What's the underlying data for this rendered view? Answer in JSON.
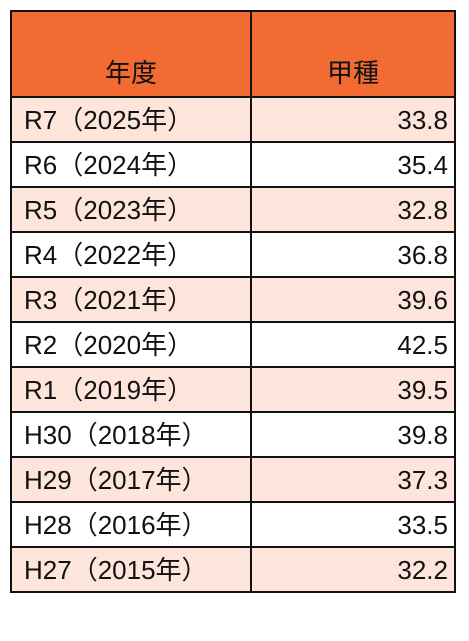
{
  "table": {
    "headers": [
      "年度",
      "甲種"
    ],
    "header_bg": "#f26b33",
    "stripe_bg": "#fde5dc",
    "rows": [
      {
        "year": "R7（2025年）",
        "value": "33.8"
      },
      {
        "year": "R6（2024年）",
        "value": "35.4"
      },
      {
        "year": "R5（2023年）",
        "value": "32.8"
      },
      {
        "year": "R4（2022年）",
        "value": "36.8"
      },
      {
        "year": "R3（2021年）",
        "value": "39.6"
      },
      {
        "year": "R2（2020年）",
        "value": "42.5"
      },
      {
        "year": "R1（2019年）",
        "value": "39.5"
      },
      {
        "year": "H30（2018年）",
        "value": "39.8"
      },
      {
        "year": "H29（2017年）",
        "value": "37.3"
      },
      {
        "year": "H28（2016年）",
        "value": "33.5"
      },
      {
        "year": "H27（2015年）",
        "value": "32.2"
      }
    ]
  }
}
